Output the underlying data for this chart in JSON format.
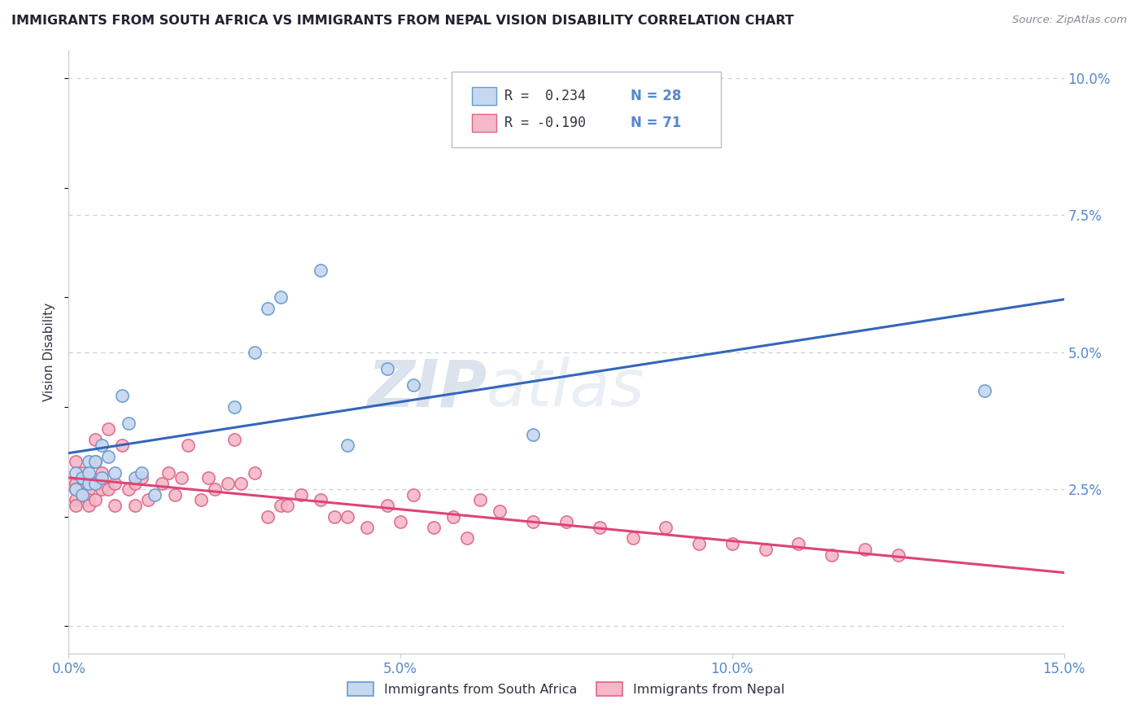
{
  "title": "IMMIGRANTS FROM SOUTH AFRICA VS IMMIGRANTS FROM NEPAL VISION DISABILITY CORRELATION CHART",
  "source_text": "Source: ZipAtlas.com",
  "ylabel": "Vision Disability",
  "watermark_zip": "ZIP",
  "watermark_atlas": "atlas",
  "xlim": [
    0.0,
    0.15
  ],
  "ylim": [
    -0.005,
    0.105
  ],
  "xticks": [
    0.0,
    0.05,
    0.1,
    0.15
  ],
  "xtick_labels": [
    "0.0%",
    "5.0%",
    "10.0%",
    "15.0%"
  ],
  "yticks": [
    0.0,
    0.025,
    0.05,
    0.075,
    0.1
  ],
  "ytick_labels": [
    "",
    "2.5%",
    "5.0%",
    "7.5%",
    "10.0%"
  ],
  "legend_r1": "R =  0.234",
  "legend_n1": "N = 28",
  "legend_r2": "R = -0.190",
  "legend_n2": "N = 71",
  "blue_scatter_face": "#c5d8f0",
  "blue_scatter_edge": "#6699cc",
  "pink_scatter_face": "#f5b8c8",
  "pink_scatter_edge": "#dd6688",
  "line_blue": "#3366bb",
  "line_pink": "#dd4477",
  "axis_label_color": "#5588cc",
  "grid_color": "#c8d0dc",
  "bg_color": "#ffffff",
  "title_color": "#222233",
  "source_color": "#888899",
  "ylabel_color": "#333344",
  "south_africa_x": [
    0.001,
    0.001,
    0.002,
    0.002,
    0.003,
    0.003,
    0.003,
    0.004,
    0.004,
    0.005,
    0.005,
    0.006,
    0.007,
    0.008,
    0.009,
    0.01,
    0.011,
    0.013,
    0.025,
    0.028,
    0.03,
    0.032,
    0.038,
    0.042,
    0.048,
    0.052,
    0.07,
    0.138
  ],
  "south_africa_y": [
    0.028,
    0.025,
    0.027,
    0.024,
    0.03,
    0.026,
    0.028,
    0.03,
    0.026,
    0.033,
    0.027,
    0.031,
    0.028,
    0.042,
    0.037,
    0.027,
    0.028,
    0.024,
    0.04,
    0.05,
    0.058,
    0.06,
    0.065,
    0.033,
    0.047,
    0.044,
    0.035,
    0.043
  ],
  "nepal_x": [
    0.0,
    0.001,
    0.001,
    0.001,
    0.001,
    0.001,
    0.001,
    0.002,
    0.002,
    0.002,
    0.002,
    0.003,
    0.003,
    0.003,
    0.003,
    0.004,
    0.004,
    0.004,
    0.005,
    0.005,
    0.005,
    0.006,
    0.006,
    0.007,
    0.007,
    0.008,
    0.009,
    0.01,
    0.01,
    0.011,
    0.012,
    0.014,
    0.015,
    0.016,
    0.017,
    0.018,
    0.02,
    0.021,
    0.022,
    0.024,
    0.025,
    0.026,
    0.028,
    0.03,
    0.032,
    0.033,
    0.035,
    0.038,
    0.04,
    0.042,
    0.045,
    0.048,
    0.05,
    0.052,
    0.055,
    0.058,
    0.06,
    0.062,
    0.065,
    0.07,
    0.075,
    0.08,
    0.085,
    0.09,
    0.095,
    0.1,
    0.105,
    0.11,
    0.115,
    0.12,
    0.125
  ],
  "nepal_y": [
    0.026,
    0.03,
    0.026,
    0.025,
    0.025,
    0.023,
    0.022,
    0.028,
    0.025,
    0.027,
    0.024,
    0.027,
    0.025,
    0.023,
    0.022,
    0.03,
    0.034,
    0.023,
    0.026,
    0.028,
    0.025,
    0.036,
    0.025,
    0.026,
    0.022,
    0.033,
    0.025,
    0.026,
    0.022,
    0.027,
    0.023,
    0.026,
    0.028,
    0.024,
    0.027,
    0.033,
    0.023,
    0.027,
    0.025,
    0.026,
    0.034,
    0.026,
    0.028,
    0.02,
    0.022,
    0.022,
    0.024,
    0.023,
    0.02,
    0.02,
    0.018,
    0.022,
    0.019,
    0.024,
    0.018,
    0.02,
    0.016,
    0.023,
    0.021,
    0.019,
    0.019,
    0.018,
    0.016,
    0.018,
    0.015,
    0.015,
    0.014,
    0.015,
    0.013,
    0.014,
    0.013
  ],
  "scatter_size": 120
}
